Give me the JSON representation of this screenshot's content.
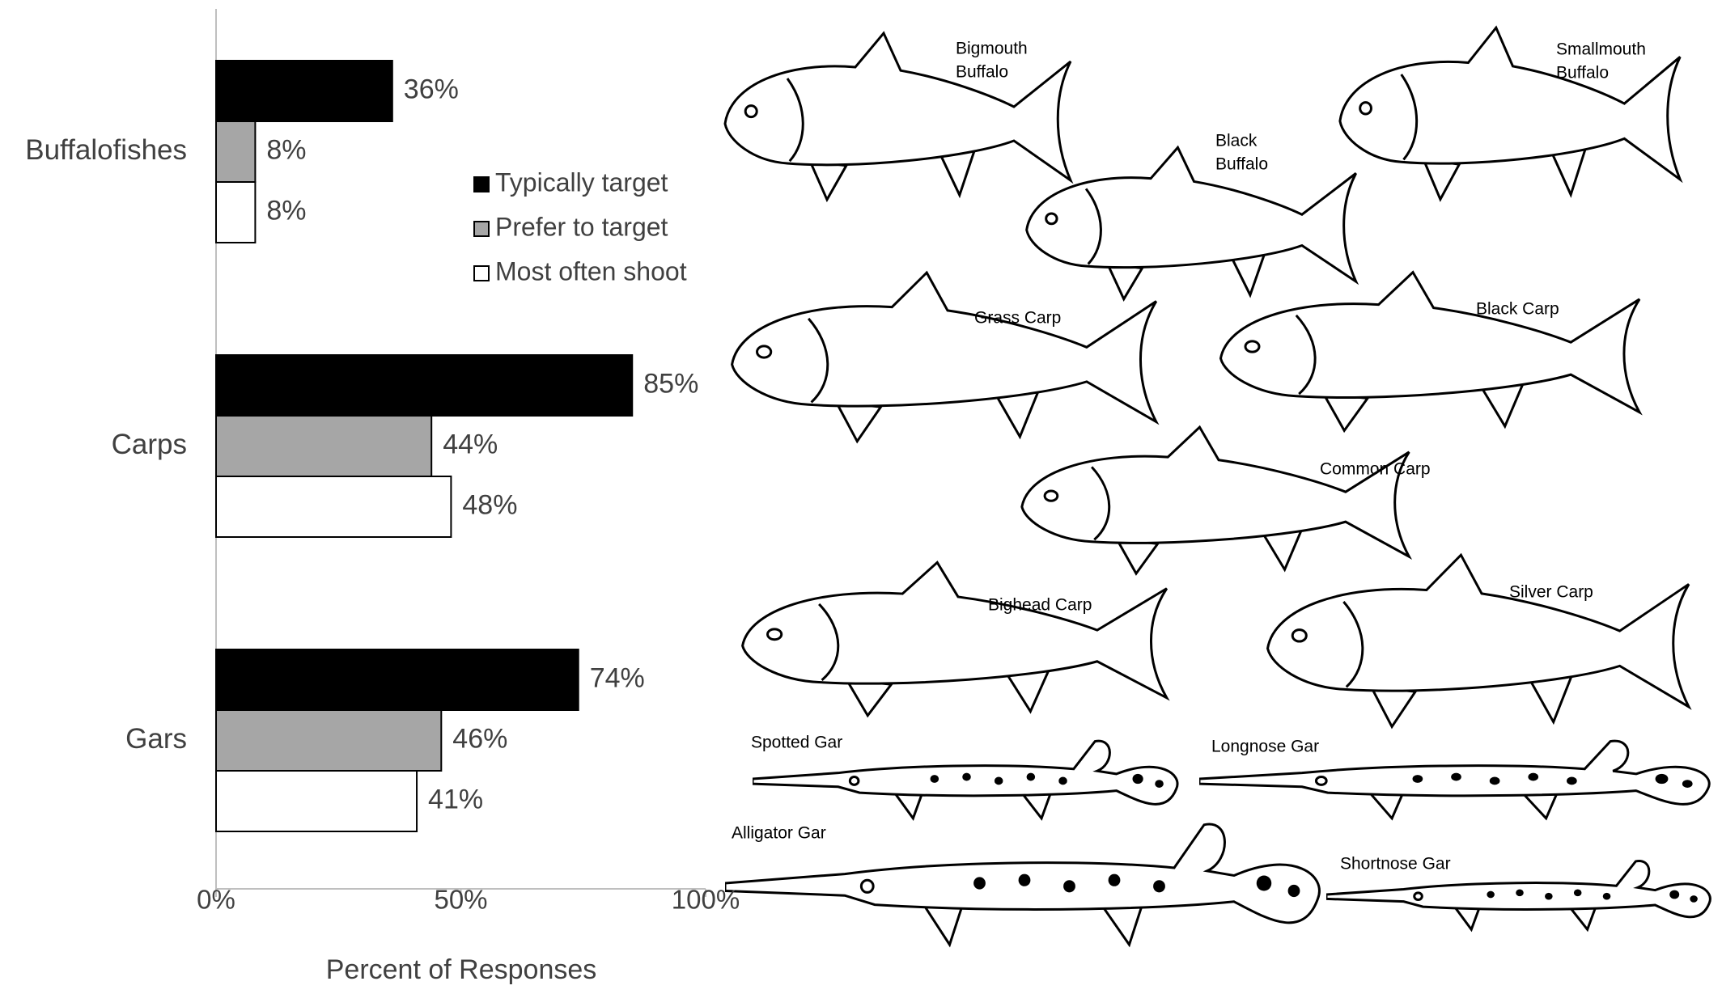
{
  "chart_data": {
    "type": "hbar",
    "categories": [
      "Buffalofishes",
      "Carps",
      "Gars"
    ],
    "series": [
      {
        "name": "Typically target",
        "color": "#000000",
        "values": [
          36,
          85,
          74
        ],
        "value_labels": [
          "36%",
          "85%",
          "74%"
        ]
      },
      {
        "name": "Prefer to target",
        "color": "#a6a6a6",
        "values": [
          8,
          44,
          46
        ],
        "value_labels": [
          "8%",
          "44%",
          "46%"
        ]
      },
      {
        "name": "Most often shoot",
        "color": "#ffffff",
        "values": [
          8,
          48,
          41
        ],
        "value_labels": [
          "8%",
          "48%",
          "41%"
        ]
      }
    ],
    "xlim": [
      0,
      100
    ],
    "xticks": [
      {
        "value": 0,
        "label": "0%"
      },
      {
        "value": 50,
        "label": "50%"
      },
      {
        "value": 100,
        "label": "100%"
      }
    ],
    "xlabel": "Percent of Responses",
    "legend": "upper right"
  },
  "illustration_labels": [
    [
      "Bigmouth",
      "Buffalo"
    ],
    [
      "Smallmouth",
      "Buffalo"
    ],
    [
      "Black",
      "Buffalo"
    ],
    [
      "Grass Carp"
    ],
    [
      "Black Carp"
    ],
    [
      "Common Carp"
    ],
    [
      "Bighead Carp"
    ],
    [
      "Silver Carp"
    ],
    [
      "Spotted Gar"
    ],
    [
      "Longnose Gar"
    ],
    [
      "Alligator Gar"
    ],
    [
      "Shortnose Gar"
    ]
  ]
}
